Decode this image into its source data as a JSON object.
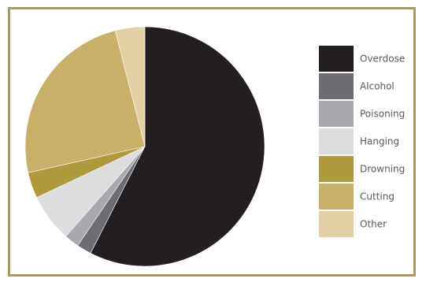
{
  "chart_data": {
    "type": "pie",
    "title": "",
    "categories": [
      "Overdose",
      "Alcohol",
      "Poisoning",
      "Hanging",
      "Drowning",
      "Cutting",
      "Other"
    ],
    "values": [
      57.5,
      2.0,
      2.0,
      6.5,
      3.5,
      24.5,
      4.0
    ],
    "colors": [
      "#231f20",
      "#6d6e71",
      "#a7a9ac",
      "#dcddde",
      "#b09a3e",
      "#c8b06b",
      "#e2d1a2"
    ],
    "start_angle_deg": 0,
    "direction": "clockwise",
    "legend_position": "right"
  }
}
